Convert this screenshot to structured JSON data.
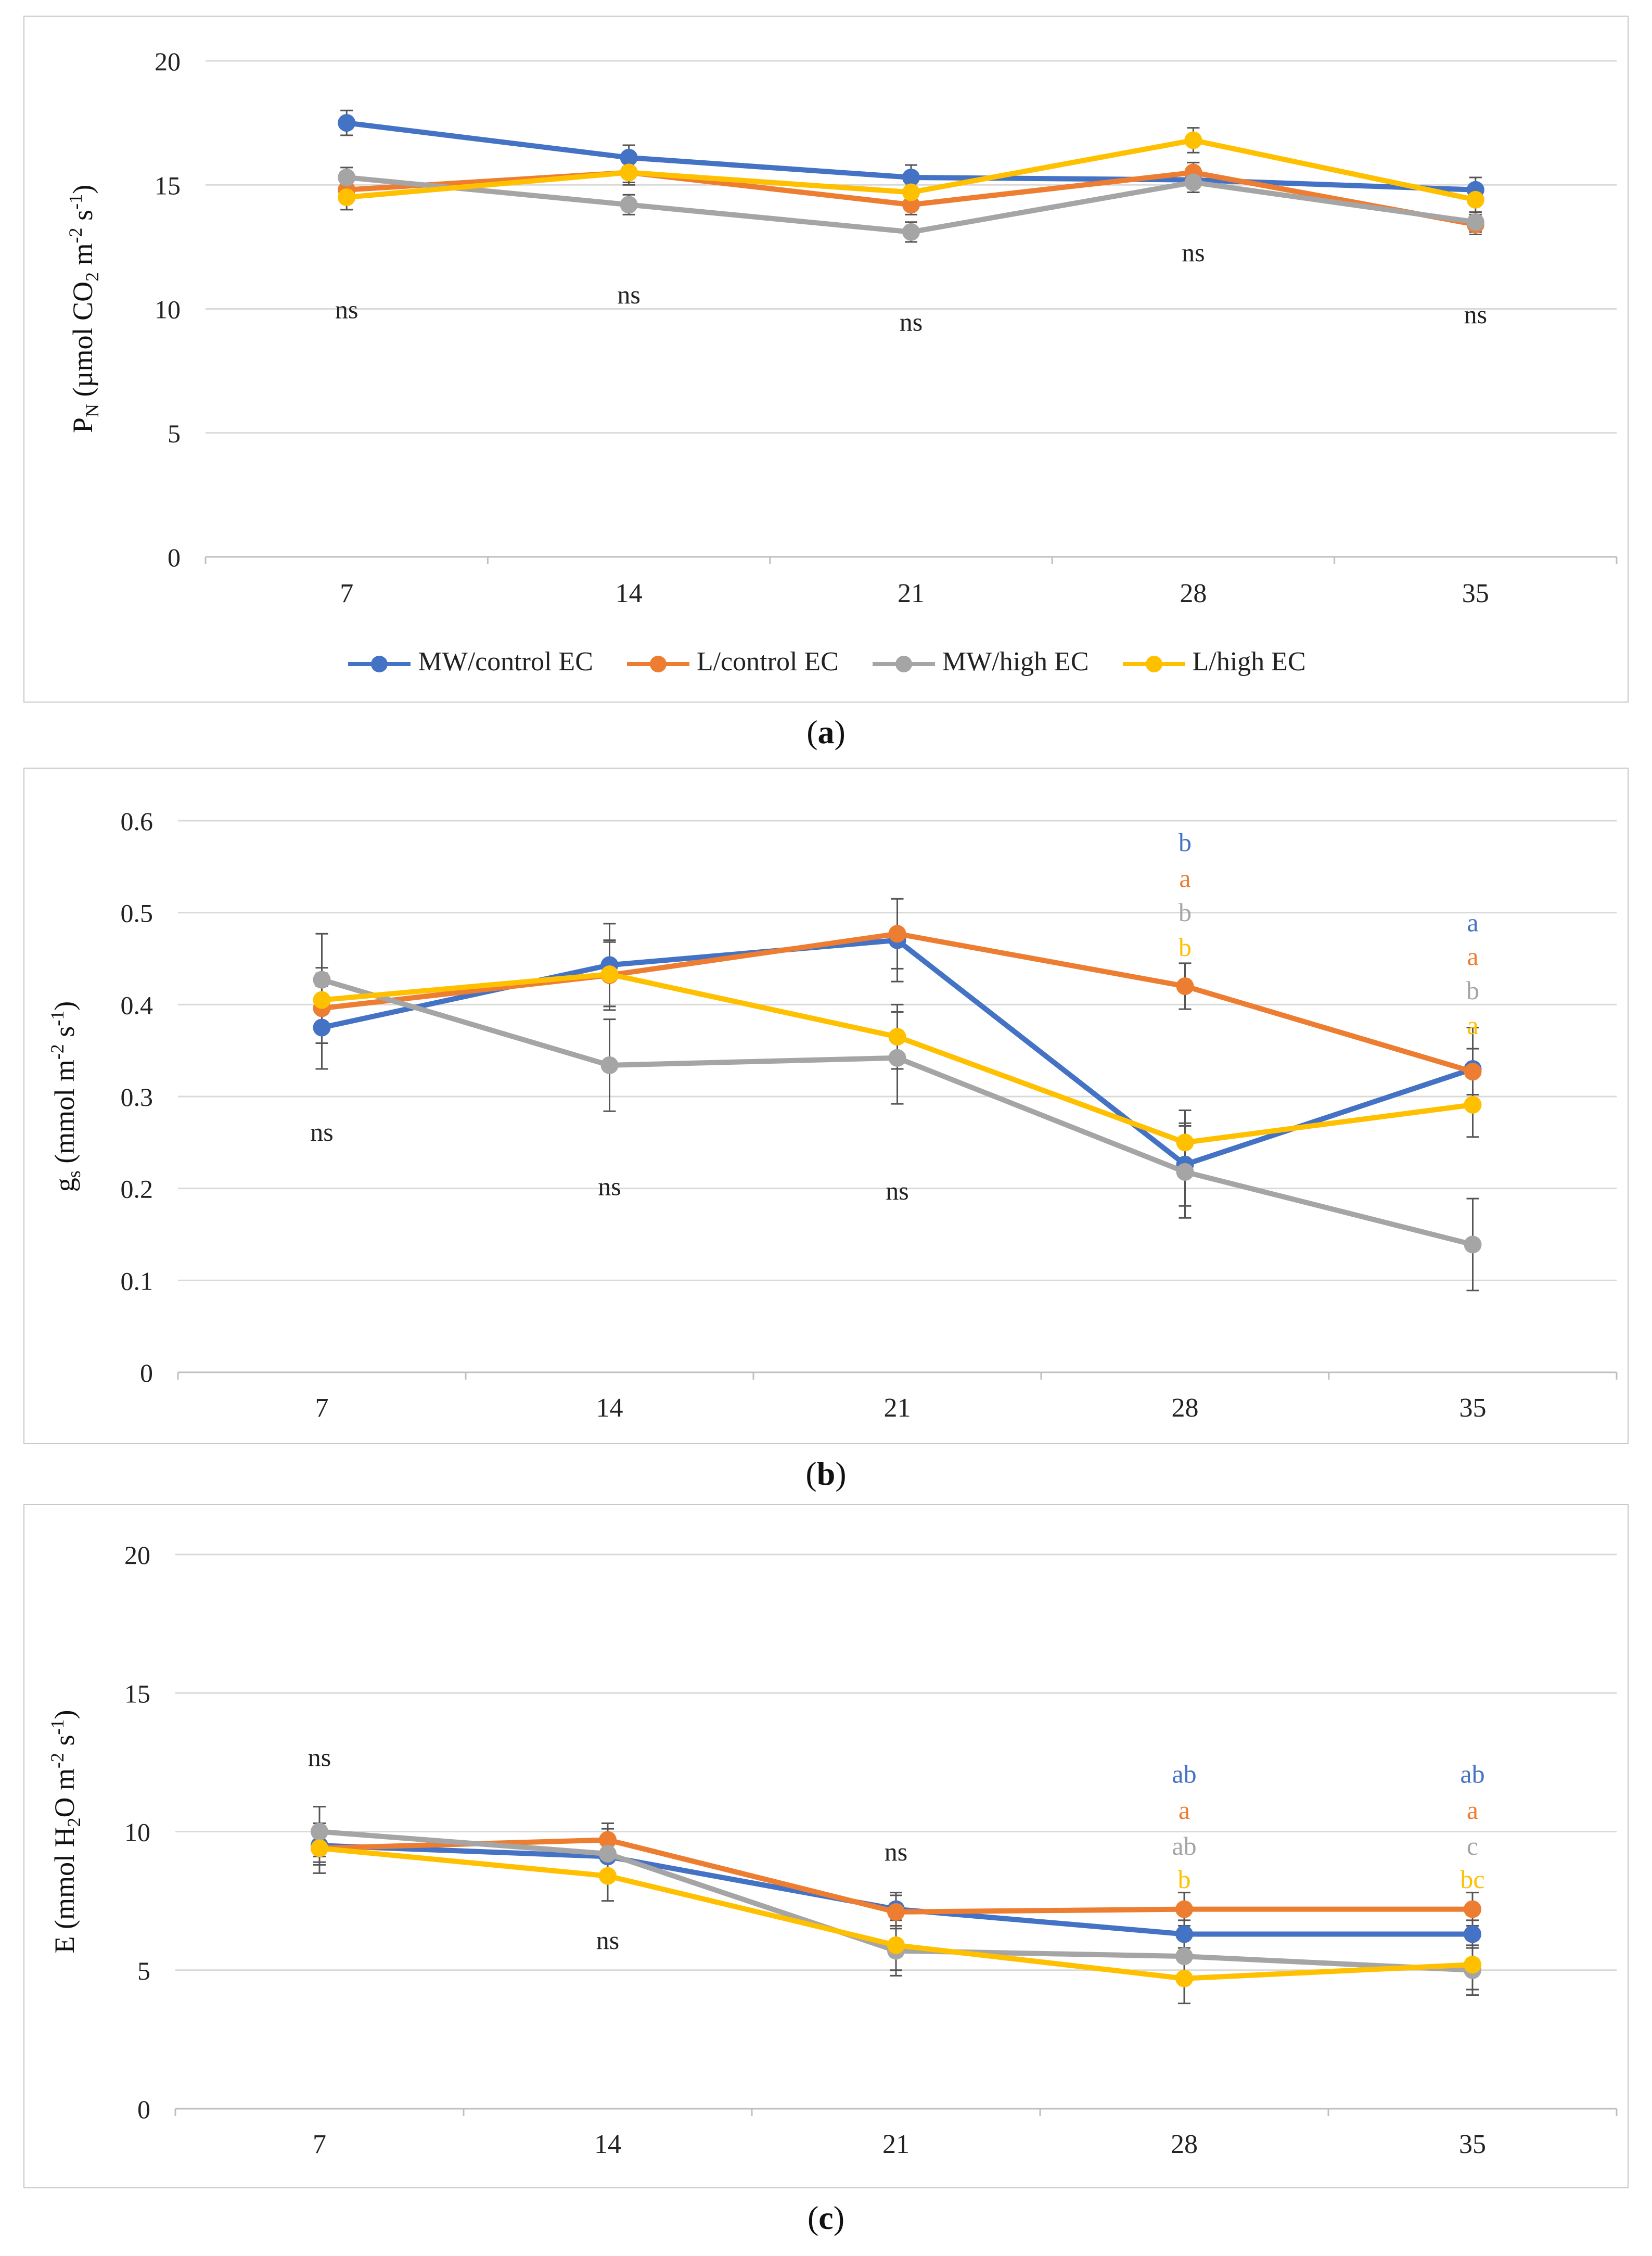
{
  "series": [
    {
      "name": "MW/control EC",
      "color": "#4472C4"
    },
    {
      "name": "L/control EC",
      "color": "#ED7D31"
    },
    {
      "name": "MW/high EC",
      "color": "#A5A5A5"
    },
    {
      "name": "L/high EC",
      "color": "#FFC000"
    }
  ],
  "captions": [
    {
      "open": "(",
      "letter": "a",
      "close": ")"
    },
    {
      "open": "(",
      "letter": "b",
      "close": ")"
    },
    {
      "open": "(",
      "letter": "c",
      "close": ")"
    }
  ],
  "chart_data": [
    {
      "id": "a",
      "type": "line",
      "x": [
        "7",
        "14",
        "21",
        "28",
        "35"
      ],
      "ylim": [
        0,
        20
      ],
      "yticks": [
        0,
        5,
        10,
        15,
        20
      ],
      "ylabel": {
        "main": "P",
        "sub1": "N",
        "mid": " (µmol CO",
        "sub2": "2",
        "mid2": " m",
        "sup1": "-2",
        "mid3": " s",
        "sup2": "-1",
        "end": ")"
      },
      "gridlines": true,
      "legend": "bottom",
      "series": [
        {
          "name": "MW/control EC",
          "values": [
            17.5,
            16.1,
            15.3,
            15.2,
            14.8
          ],
          "errors": [
            0.5,
            0.5,
            0.5,
            0.5,
            0.5
          ]
        },
        {
          "name": "L/control EC",
          "values": [
            14.8,
            15.5,
            14.2,
            15.5,
            13.4
          ],
          "errors": [
            0.4,
            0.4,
            0.4,
            0.4,
            0.4
          ]
        },
        {
          "name": "MW/high EC",
          "values": [
            15.3,
            14.2,
            13.1,
            15.1,
            13.5
          ],
          "errors": [
            0.4,
            0.4,
            0.4,
            0.4,
            0.4
          ]
        },
        {
          "name": "L/high EC",
          "values": [
            14.5,
            15.5,
            14.7,
            16.8,
            14.4
          ],
          "errors": [
            0.5,
            0.5,
            0.5,
            0.5,
            0.5
          ]
        }
      ],
      "annotations": [
        {
          "x": "7",
          "y": 10.0,
          "text": "ns",
          "color": "#222222"
        },
        {
          "x": "14",
          "y": 10.6,
          "text": "ns",
          "color": "#222222"
        },
        {
          "x": "21",
          "y": 9.5,
          "text": "ns",
          "color": "#222222"
        },
        {
          "x": "28",
          "y": 12.3,
          "text": "ns",
          "color": "#222222"
        },
        {
          "x": "35",
          "y": 9.8,
          "text": "ns",
          "color": "#222222"
        }
      ]
    },
    {
      "id": "b",
      "type": "line",
      "x": [
        "7",
        "14",
        "21",
        "28",
        "35"
      ],
      "ylim": [
        0,
        0.6
      ],
      "yticks": [
        "0",
        "0.1",
        "0.2",
        "0.3",
        "0.4",
        "0.5",
        "0.6"
      ],
      "ylabel": {
        "main": "g",
        "sub1": "s",
        "mid": " (mmol m",
        "sub2": "",
        "mid2": "",
        "sup1": "-2",
        "mid3": " s",
        "sup2": "-1",
        "end": ")"
      },
      "gridlines": true,
      "legend": "none",
      "series": [
        {
          "name": "MW/control EC",
          "values": [
            0.375,
            0.443,
            0.47,
            0.226,
            0.33
          ],
          "errors": [
            0.045,
            0.045,
            0.045,
            0.045,
            0.045
          ]
        },
        {
          "name": "L/control EC",
          "values": [
            0.396,
            0.432,
            0.477,
            0.42,
            0.327
          ],
          "errors": [
            0.038,
            0.038,
            0.038,
            0.025,
            0.025
          ]
        },
        {
          "name": "MW/high EC",
          "values": [
            0.427,
            0.334,
            0.342,
            0.218,
            0.139
          ],
          "errors": [
            0.05,
            0.05,
            0.05,
            0.05,
            0.05
          ]
        },
        {
          "name": "L/high EC",
          "values": [
            0.405,
            0.433,
            0.365,
            0.25,
            0.291
          ],
          "errors": [
            0.035,
            0.035,
            0.035,
            0.035,
            0.035
          ]
        }
      ],
      "annotations": [
        {
          "x": "7",
          "y": 0.262,
          "text": "ns",
          "color": "#222222"
        },
        {
          "x": "14",
          "y": 0.203,
          "text": "ns",
          "color": "#222222"
        },
        {
          "x": "21",
          "y": 0.198,
          "text": "ns",
          "color": "#222222"
        },
        {
          "x": "28",
          "y": 0.577,
          "text": "b",
          "color": "#4472C4"
        },
        {
          "x": "28",
          "y": 0.538,
          "text": "a",
          "color": "#ED7D31"
        },
        {
          "x": "28",
          "y": 0.501,
          "text": "b",
          "color": "#A5A5A5"
        },
        {
          "x": "28",
          "y": 0.463,
          "text": "b",
          "color": "#FFC000"
        },
        {
          "x": "35",
          "y": 0.49,
          "text": "a",
          "color": "#4472C4"
        },
        {
          "x": "35",
          "y": 0.453,
          "text": "a",
          "color": "#ED7D31"
        },
        {
          "x": "35",
          "y": 0.416,
          "text": "b",
          "color": "#A5A5A5"
        },
        {
          "x": "35",
          "y": 0.378,
          "text": "a",
          "color": "#FFC000"
        }
      ]
    },
    {
      "id": "c",
      "type": "line",
      "x": [
        "7",
        "14",
        "21",
        "28",
        "35"
      ],
      "ylim": [
        0,
        20
      ],
      "yticks": [
        0,
        5,
        10,
        15,
        20
      ],
      "ylabel": {
        "main": "E",
        "sub1": "",
        "mid": " (mmol H",
        "sub2": "2",
        "mid2": "O m",
        "sup1": "-2",
        "mid3": " s",
        "sup2": "-1",
        "end": ")"
      },
      "gridlines": true,
      "legend": "none",
      "series": [
        {
          "name": "MW/control EC",
          "values": [
            9.5,
            9.1,
            7.2,
            6.3,
            6.3
          ],
          "errors": [
            0.6,
            0.6,
            0.6,
            0.5,
            0.5
          ]
        },
        {
          "name": "L/control EC",
          "values": [
            9.4,
            9.7,
            7.1,
            7.2,
            7.2
          ],
          "errors": [
            0.6,
            0.6,
            0.6,
            0.6,
            0.6
          ]
        },
        {
          "name": "MW/high EC",
          "values": [
            10.0,
            9.2,
            5.7,
            5.5,
            5.0
          ],
          "errors": [
            0.9,
            0.9,
            0.9,
            0.9,
            0.9
          ]
        },
        {
          "name": "L/high EC",
          "values": [
            9.4,
            8.4,
            5.9,
            4.7,
            5.2
          ],
          "errors": [
            0.9,
            0.9,
            0.9,
            0.9,
            0.9
          ]
        }
      ],
      "annotations": [
        {
          "x": "7",
          "y": 12.7,
          "text": "ns",
          "color": "#222222"
        },
        {
          "x": "14",
          "y": 6.1,
          "text": "ns",
          "color": "#222222"
        },
        {
          "x": "21",
          "y": 9.3,
          "text": "ns",
          "color": "#222222"
        },
        {
          "x": "28",
          "y": 12.1,
          "text": "ab",
          "color": "#4472C4"
        },
        {
          "x": "28",
          "y": 10.8,
          "text": "a",
          "color": "#ED7D31"
        },
        {
          "x": "28",
          "y": 9.5,
          "text": "ab",
          "color": "#A5A5A5"
        },
        {
          "x": "28",
          "y": 8.3,
          "text": "b",
          "color": "#FFC000"
        },
        {
          "x": "35",
          "y": 12.1,
          "text": "ab",
          "color": "#4472C4"
        },
        {
          "x": "35",
          "y": 10.8,
          "text": "a",
          "color": "#ED7D31"
        },
        {
          "x": "35",
          "y": 9.5,
          "text": "c",
          "color": "#A5A5A5"
        },
        {
          "x": "35",
          "y": 8.3,
          "text": "bc",
          "color": "#FFC000"
        }
      ]
    }
  ]
}
